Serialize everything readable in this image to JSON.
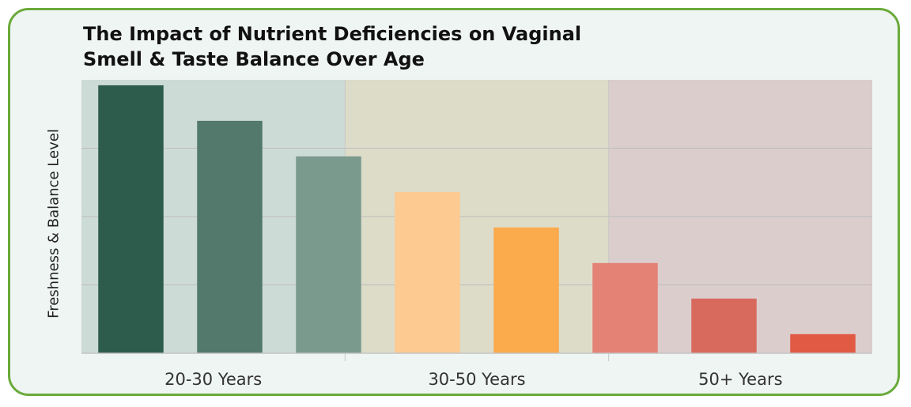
{
  "chart_data": {
    "type": "bar",
    "title": "The Impact of Nutrient Deficiencies on Vaginal Smell & Taste Balance Over Age",
    "title_lines": [
      "The Impact of Nutrient Deficiencies on Vaginal",
      "Smell & Taste Balance Over Age"
    ],
    "ylabel": "Freshness & Balance Level",
    "xlabel": "",
    "ylim": [
      0,
      100
    ],
    "grid": true,
    "groups": [
      {
        "label": "20-30 Years",
        "background": "#cddbd6",
        "bars": [
          {
            "value": 98,
            "color": "#2d5c4c"
          },
          {
            "value": 85,
            "color": "#52796b"
          },
          {
            "value": 72,
            "color": "#7b9a8e"
          }
        ]
      },
      {
        "label": "30-50 Years",
        "background": "#dcdcc9",
        "bars": [
          {
            "value": 59,
            "color": "#fdca92"
          },
          {
            "value": 46,
            "color": "#fbaa4c"
          }
        ]
      },
      {
        "label": "50+ Years",
        "background": "#dccdcd",
        "bars": [
          {
            "value": 33,
            "color": "#e48276"
          },
          {
            "value": 20,
            "color": "#d86a5d"
          },
          {
            "value": 7,
            "color": "#e05a44"
          }
        ]
      }
    ]
  }
}
